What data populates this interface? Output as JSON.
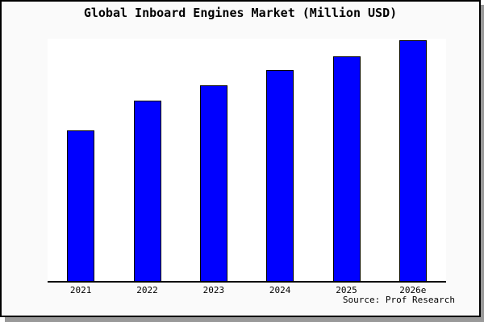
{
  "window": {
    "background_color": "#fafafa",
    "plot_background_color": "#ffffff",
    "frame_border_color": "#000000",
    "shadow_color": "#999999"
  },
  "title": "Global Inboard Engines Market (Million USD)",
  "source": "Source: Prof Research",
  "chart_data": {
    "type": "bar",
    "title": "Global Inboard Engines Market (Million USD)",
    "categories": [
      "2021",
      "2022",
      "2023",
      "2024",
      "2025",
      "2026e"
    ],
    "values": [
      62.6,
      75.1,
      81.4,
      87.6,
      93.6,
      100
    ],
    "note": "No y-axis ticks or gridlines are shown in the image; values are estimated bar heights expressed as percent of the tallest (2026e) bar.",
    "xlabel": "",
    "ylabel": "",
    "ylim": [
      0,
      100.8
    ],
    "grid": false,
    "legend": false,
    "y_axis_labels_visible": false,
    "bar_color": "#0000ff",
    "bar_border_color": "#000000",
    "source_label": "Source: Prof Research"
  }
}
